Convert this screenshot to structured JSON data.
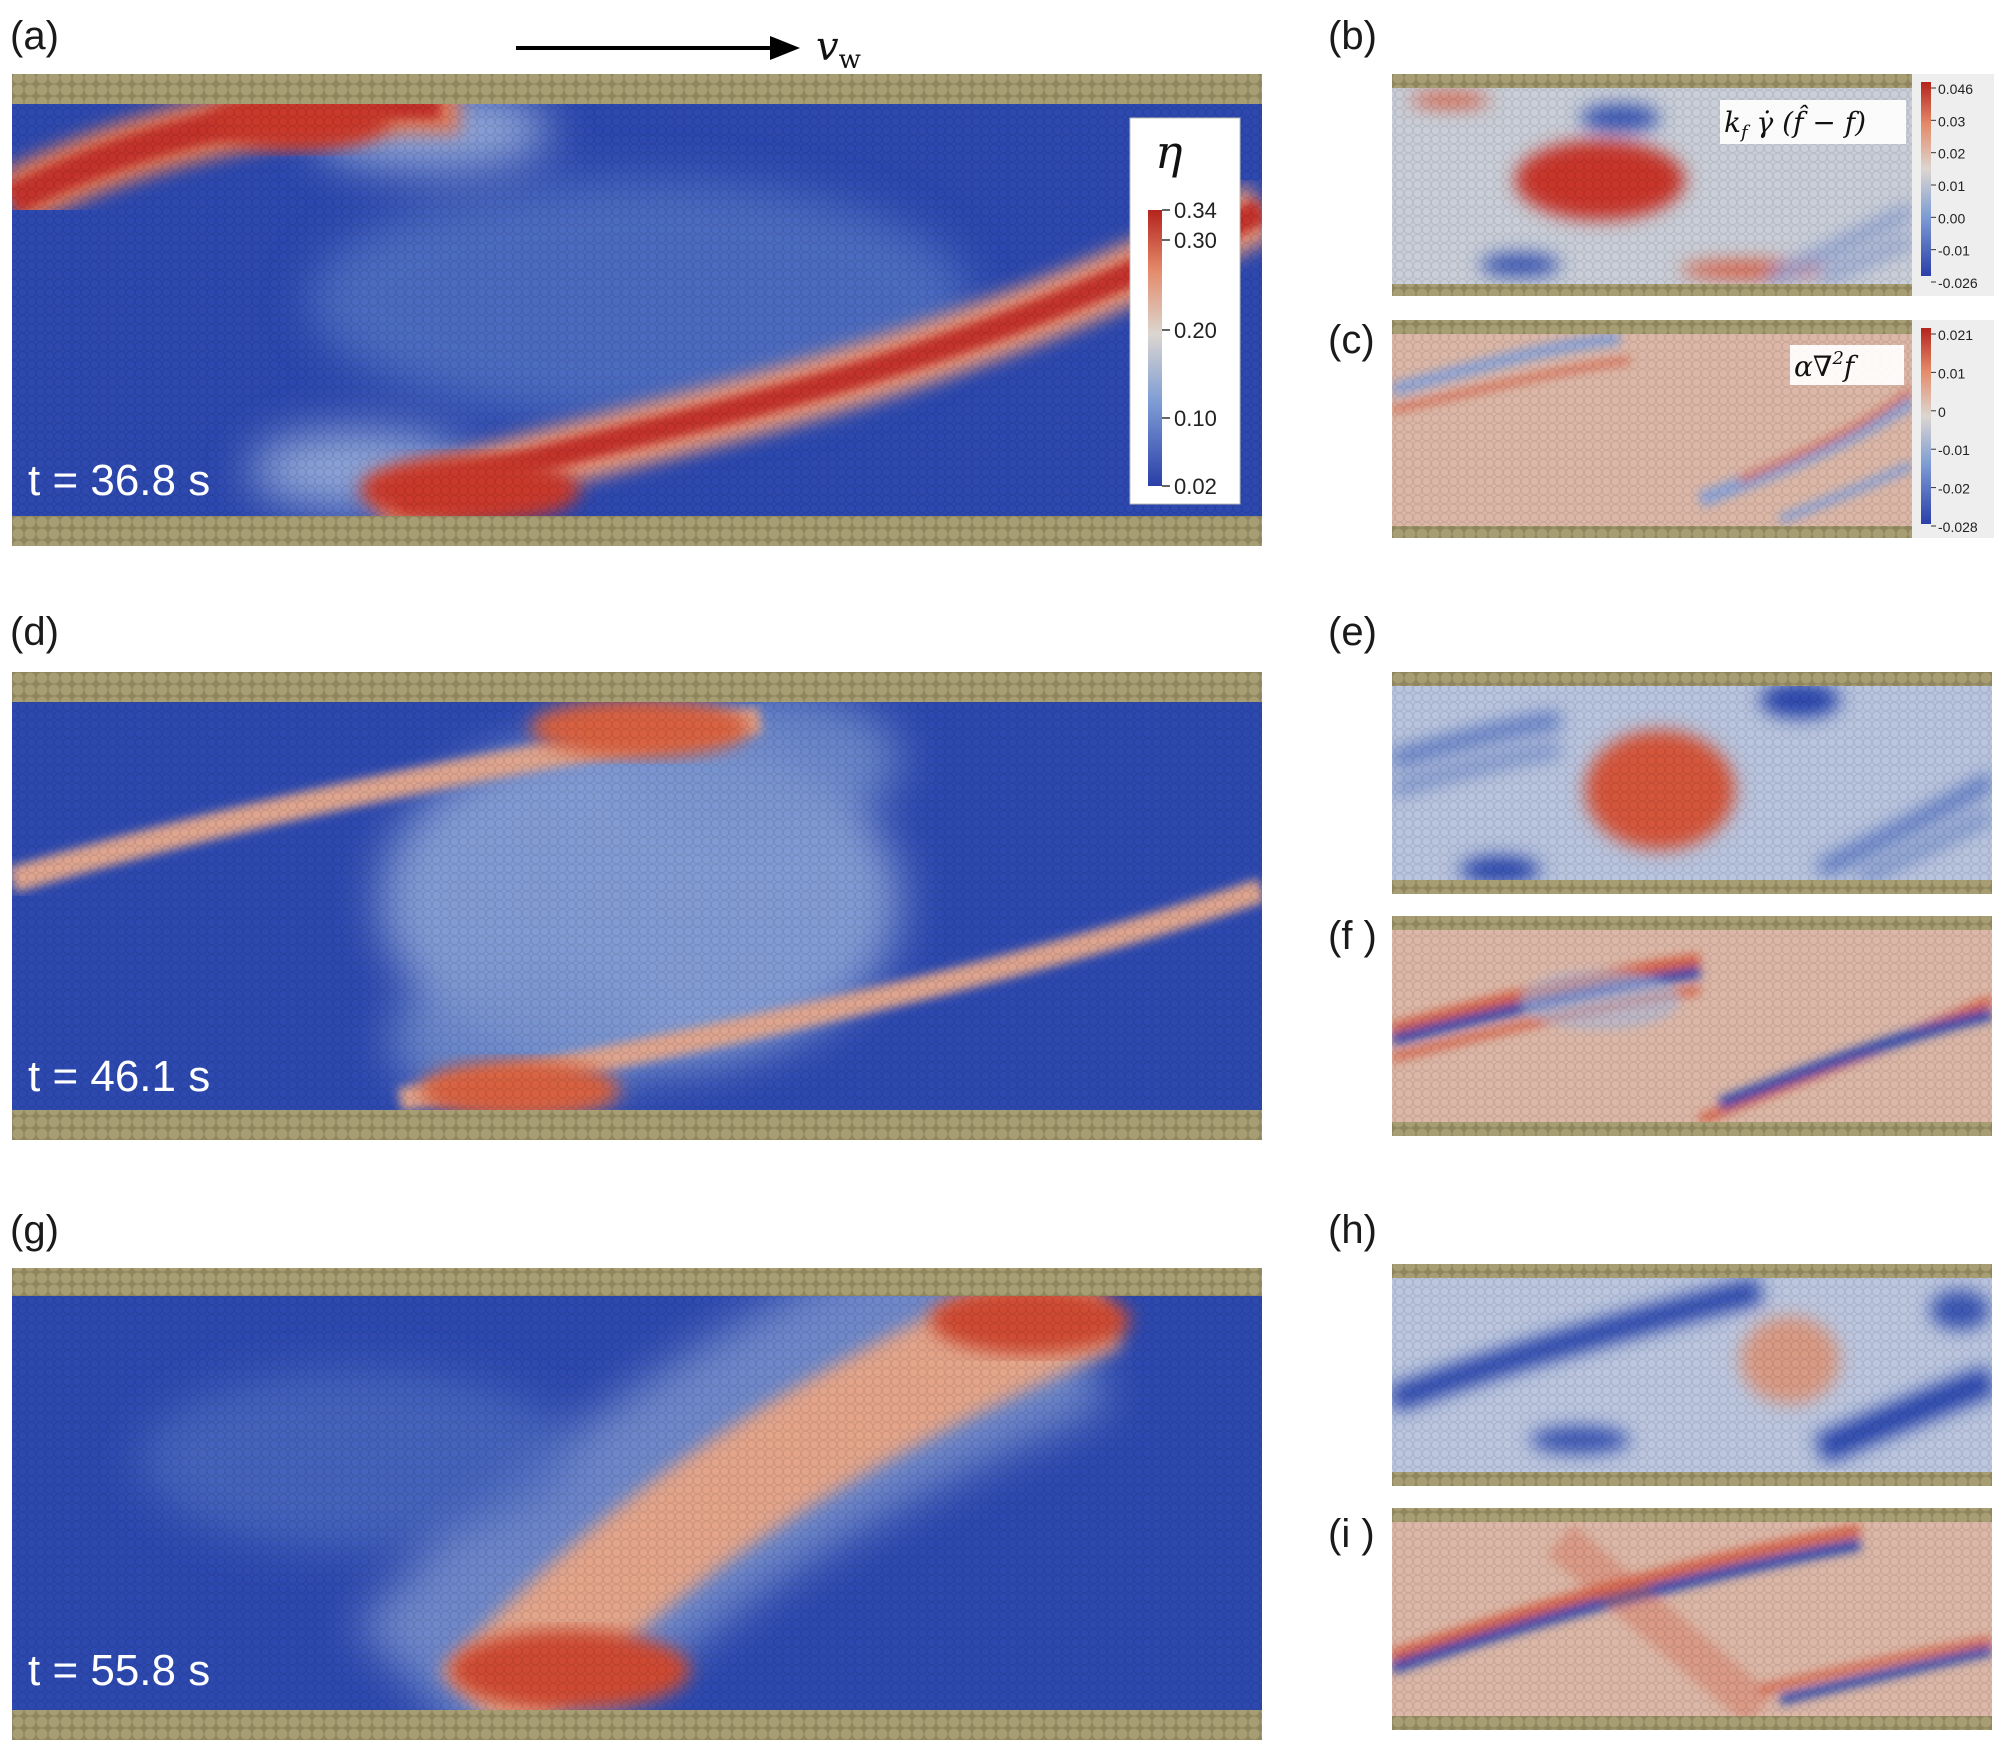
{
  "figure": {
    "panels": [
      {
        "id": "a",
        "label": "(a)",
        "time": "t = 36.8 s"
      },
      {
        "id": "b",
        "label": "(b)"
      },
      {
        "id": "c",
        "label": "(c)"
      },
      {
        "id": "d",
        "label": "(d)",
        "time": "t = 46.1 s"
      },
      {
        "id": "e",
        "label": "(e)"
      },
      {
        "id": "f",
        "label": "(f )"
      },
      {
        "id": "g",
        "label": "(g)",
        "time": "t = 55.8 s"
      },
      {
        "id": "h",
        "label": "(h)"
      },
      {
        "id": "i",
        "label": "(i )"
      }
    ],
    "wall_velocity_label": "vw",
    "eta_colorbar": {
      "symbol": "η",
      "ticks": [
        "0.34",
        "0.30",
        "0.20",
        "0.10",
        "0.02"
      ]
    },
    "source_colorbar": {
      "label": "kf γ̇ (f̂ − f)",
      "ticks": [
        "0.046",
        "0.03",
        "0.02",
        "0.01",
        "0.00",
        "-0.01",
        "-0.026"
      ]
    },
    "diffusion_colorbar": {
      "label": "α∇²f",
      "ticks": [
        "0.021",
        "0.01",
        "0",
        "-0.01",
        "-0.02",
        "-0.028"
      ]
    },
    "colors": {
      "low": "#2d49b0",
      "mid": "#d9d4cf",
      "high": "#c8362a",
      "wall": "#9e946a"
    }
  }
}
